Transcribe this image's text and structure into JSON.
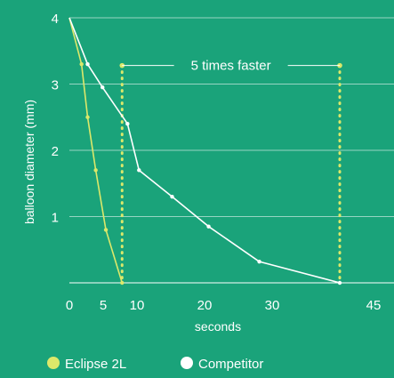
{
  "chart_data": {
    "type": "line",
    "xlabel": "seconds",
    "ylabel": "balloon diameter (mm)",
    "xlim": [
      0,
      45
    ],
    "ylim": [
      0,
      4
    ],
    "x_ticks": [
      0,
      5,
      10,
      20,
      30,
      45
    ],
    "y_ticks": [
      1,
      2,
      3,
      4
    ],
    "grid": "horizontal",
    "legend_position": "bottom-left",
    "series": [
      {
        "name": "Eclipse 2L",
        "color": "#dce86a",
        "x": [
          0,
          1.8,
          2.7,
          3.9,
          5.4,
          7.8
        ],
        "y": [
          4,
          3.3,
          2.5,
          1.7,
          0.8,
          0
        ]
      },
      {
        "name": "Competitor",
        "color": "#ffffff",
        "x": [
          0,
          2.7,
          4.9,
          8.6,
          10.3,
          15.2,
          20.6,
          28.1,
          40.0
        ],
        "y": [
          4,
          3.3,
          2.95,
          2.4,
          1.7,
          1.3,
          0.85,
          0.32,
          0
        ]
      }
    ],
    "annotations": [
      {
        "text": "5 times faster",
        "x_from": 7.8,
        "x_to": 40.0,
        "y": 3.28
      }
    ]
  }
}
